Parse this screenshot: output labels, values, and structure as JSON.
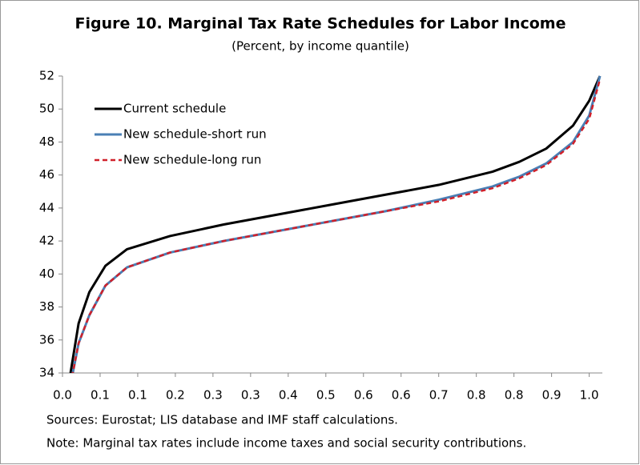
{
  "chart_data": {
    "type": "line",
    "title": "Figure 10. Marginal Tax Rate Schedules for Labor Income",
    "subtitle": "(Percent, by income quantile)",
    "sources": "Sources: Eurostat; LIS database and IMF staff calculations.",
    "note": "Note: Marginal tax rates include income taxes and social security contributions.",
    "x": [
      0.015,
      0.03,
      0.05,
      0.08,
      0.12,
      0.2,
      0.3,
      0.4,
      0.5,
      0.6,
      0.7,
      0.8,
      0.85,
      0.9,
      0.95,
      0.98,
      1.0
    ],
    "series": [
      {
        "name": "Current schedule",
        "color": "#000000",
        "dash": false,
        "values": [
          34,
          37,
          38.9,
          40.5,
          41.5,
          42.3,
          43,
          43.6,
          44.2,
          44.8,
          45.4,
          46.2,
          46.8,
          47.6,
          49,
          50.5,
          52
        ]
      },
      {
        "name": "New schedule-short run",
        "color": "#4a7fb5",
        "dash": false,
        "values": [
          33.3,
          35.8,
          37.5,
          39.3,
          40.4,
          41.3,
          42,
          42.6,
          43.2,
          43.8,
          44.5,
          45.3,
          45.9,
          46.7,
          48,
          49.6,
          52
        ]
      },
      {
        "name": "New schedule-long run",
        "color": "#d0202a",
        "dash": true,
        "values": [
          33.3,
          35.8,
          37.5,
          39.3,
          40.4,
          41.3,
          42,
          42.6,
          43.2,
          43.8,
          44.4,
          45.2,
          45.8,
          46.6,
          47.9,
          49.4,
          51.8
        ]
      }
    ],
    "xlim": [
      0,
      1.0
    ],
    "ylim": [
      34,
      52
    ],
    "yticks": [
      34,
      36,
      38,
      40,
      42,
      44,
      46,
      48,
      50,
      52
    ],
    "xticks": [
      {
        "value": 0,
        "label": "0.0"
      },
      {
        "value": 0.07,
        "label": "0.1"
      },
      {
        "value": 0.14,
        "label": "0.1"
      },
      {
        "value": 0.21,
        "label": "0.2"
      },
      {
        "value": 0.28,
        "label": "0.3"
      },
      {
        "value": 0.35,
        "label": "0.3"
      },
      {
        "value": 0.42,
        "label": "0.4"
      },
      {
        "value": 0.49,
        "label": "0.5"
      },
      {
        "value": 0.56,
        "label": "0.6"
      },
      {
        "value": 0.63,
        "label": "0.6"
      },
      {
        "value": 0.7,
        "label": "0.7"
      },
      {
        "value": 0.77,
        "label": "0.8"
      },
      {
        "value": 0.84,
        "label": "0.8"
      },
      {
        "value": 0.91,
        "label": "0.9"
      },
      {
        "value": 0.98,
        "label": "1.0"
      }
    ],
    "grid": false
  }
}
